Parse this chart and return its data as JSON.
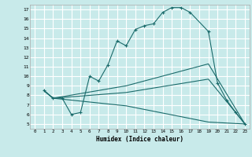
{
  "xlabel": "Humidex (Indice chaleur)",
  "bg_color": "#c8eaea",
  "grid_color": "#ffffff",
  "line_color": "#1a6b6b",
  "xlim": [
    -0.5,
    23.5
  ],
  "ylim": [
    4.5,
    17.5
  ],
  "xticks": [
    0,
    1,
    2,
    3,
    4,
    5,
    6,
    7,
    8,
    9,
    10,
    11,
    12,
    13,
    14,
    15,
    16,
    17,
    18,
    19,
    20,
    21,
    22,
    23
  ],
  "yticks": [
    5,
    6,
    7,
    8,
    9,
    10,
    11,
    12,
    13,
    14,
    15,
    16,
    17
  ],
  "line1_x": [
    1,
    2,
    3,
    4,
    5,
    6,
    7,
    8,
    9,
    10,
    11,
    12,
    13,
    14,
    15,
    16,
    17,
    19,
    20,
    21,
    22,
    23
  ],
  "line1_y": [
    8.5,
    7.7,
    7.7,
    6.0,
    6.2,
    10.0,
    9.5,
    11.2,
    13.7,
    13.2,
    14.9,
    15.3,
    15.5,
    16.7,
    17.2,
    17.2,
    16.7,
    14.7,
    9.3,
    7.5,
    6.2,
    5.0
  ],
  "line2_x": [
    1,
    2,
    10,
    19,
    23
  ],
  "line2_y": [
    8.5,
    7.7,
    9.0,
    11.3,
    5.0
  ],
  "line3_x": [
    1,
    2,
    10,
    19,
    23
  ],
  "line3_y": [
    8.5,
    7.7,
    8.3,
    9.7,
    5.0
  ],
  "line4_x": [
    1,
    2,
    10,
    19,
    23
  ],
  "line4_y": [
    8.5,
    7.7,
    6.9,
    5.2,
    5.0
  ]
}
